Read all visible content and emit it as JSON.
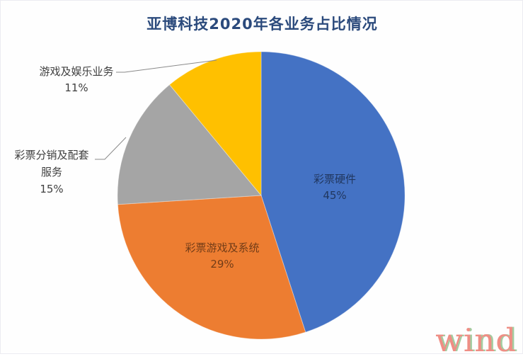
{
  "title": {
    "text": "亚博科技2020年各业务占比情况",
    "color": "#2b4a7c"
  },
  "watermark": {
    "text": "wind"
  },
  "chart_data": {
    "type": "pie",
    "title": "亚博科技2020年各业务占比情况",
    "start_angle_deg": 0,
    "direction": "clockwise",
    "legend": "none",
    "slices": [
      {
        "label": "彩票硬件",
        "value_pct": 45,
        "pct_text": "45%",
        "color": "#4472C4",
        "label_position": "inside"
      },
      {
        "label": "彩票游戏及系统",
        "value_pct": 29,
        "pct_text": "29%",
        "color": "#ED7D31",
        "label_position": "inside"
      },
      {
        "label": "彩票分销及配套服务",
        "value_pct": 15,
        "pct_text": "15%",
        "color": "#A5A5A5",
        "label_position": "outside-left"
      },
      {
        "label": "游戏及娱乐业务",
        "value_pct": 11,
        "pct_text": "11%",
        "color": "#FFC000",
        "label_position": "outside-top-left"
      }
    ],
    "leader_line_color": "#8a8a8a",
    "label_color_outside": "#404040"
  }
}
